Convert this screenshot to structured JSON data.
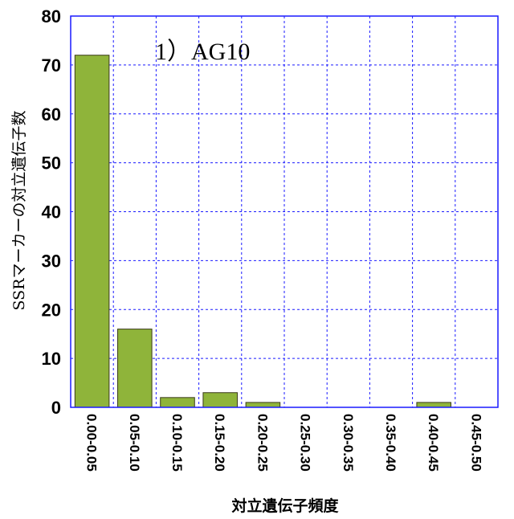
{
  "chart_data": {
    "type": "bar",
    "annotation": "1）AG10",
    "xlabel": "対立遺伝子頻度",
    "ylabel": "SSRマーカーの対立遺伝子数",
    "categories": [
      "0.00-0.05",
      "0.05-0.10",
      "0.10-0.15",
      "0.15-0.20",
      "0.20-0.25",
      "0.25-0.30",
      "0.30-0.35",
      "0.35-0.40",
      "0.40-0.45",
      "0.45-0.50"
    ],
    "values": [
      72,
      16,
      2,
      3,
      1,
      0,
      0,
      0,
      1,
      0
    ],
    "ylim": [
      0,
      80
    ],
    "yticks": [
      0,
      10,
      20,
      30,
      40,
      50,
      60,
      70,
      80
    ],
    "grid": true,
    "colors": {
      "bar": "#8fb43a",
      "grid": "#1a1aff"
    }
  }
}
